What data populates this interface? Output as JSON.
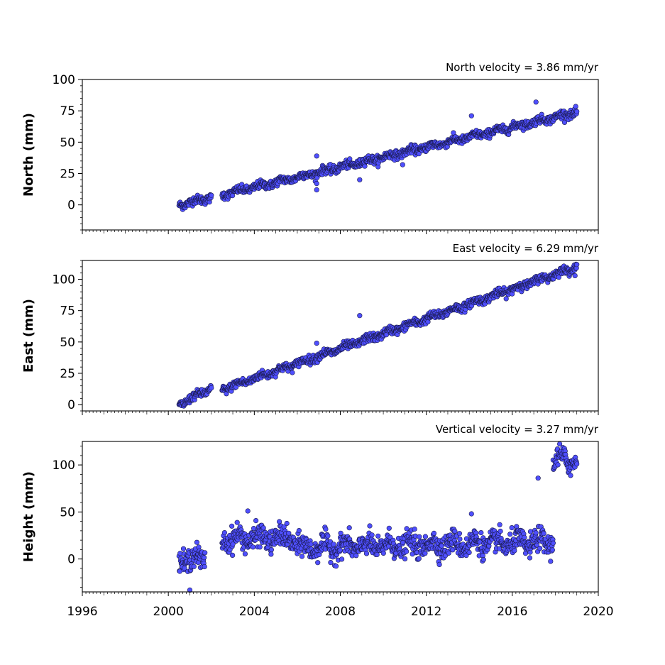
{
  "chart_data": [
    {
      "type": "scatter",
      "title": "North velocity = 3.86 mm/yr",
      "ylabel": "North (mm)",
      "xlim": [
        1996,
        2020
      ],
      "ylim": [
        -20,
        100
      ],
      "yticks": [
        0,
        25,
        50,
        75,
        100
      ],
      "velocity_mm_per_yr": 3.86,
      "marker_color": "#4f4fff",
      "marker_edge": "#1a1a4d",
      "segments": [
        {
          "x": [
            2000.5,
            2002.0
          ],
          "y": [
            0,
            6
          ]
        },
        {
          "x": [
            2002.5,
            2019.0
          ],
          "y": [
            8,
            74
          ]
        }
      ],
      "outliers": [
        {
          "x": 2006.9,
          "y": 12
        },
        {
          "x": 2006.9,
          "y": 17
        },
        {
          "x": 2006.9,
          "y": 39
        },
        {
          "x": 2008.9,
          "y": 20
        },
        {
          "x": 2010.9,
          "y": 32
        },
        {
          "x": 2014.1,
          "y": 71
        },
        {
          "x": 2017.1,
          "y": 82
        }
      ]
    },
    {
      "type": "scatter",
      "title": "East velocity = 6.29 mm/yr",
      "ylabel": "East (mm)",
      "xlim": [
        1996,
        2020
      ],
      "ylim": [
        -5,
        115
      ],
      "yticks": [
        0,
        25,
        50,
        75,
        100
      ],
      "velocity_mm_per_yr": 6.29,
      "marker_color": "#4f4fff",
      "marker_edge": "#1a1a4d",
      "segments": [
        {
          "x": [
            2000.5,
            2002.0
          ],
          "y": [
            0,
            13
          ]
        },
        {
          "x": [
            2002.5,
            2019.0
          ],
          "y": [
            12,
            110
          ]
        }
      ],
      "outliers": [
        {
          "x": 2008.9,
          "y": 71
        },
        {
          "x": 2006.9,
          "y": 49
        }
      ]
    },
    {
      "type": "scatter",
      "title": "Vertical velocity = 3.27 mm/yr",
      "ylabel": "Height (mm)",
      "xlim": [
        1996,
        2020
      ],
      "ylim": [
        -35,
        125
      ],
      "yticks": [
        0,
        50,
        100
      ],
      "xticks": [
        1996,
        2000,
        2004,
        2008,
        2012,
        2016,
        2020
      ],
      "velocity_mm_per_yr": 3.27,
      "marker_color": "#4f4fff",
      "marker_edge": "#1a1a4d",
      "segments": [
        {
          "x": [
            2000.5,
            2001.7
          ],
          "y": [
            0,
            0
          ]
        },
        {
          "x": [
            2002.5,
            2005.9
          ],
          "y": [
            22,
            22
          ]
        },
        {
          "x": [
            2005.9,
            2017.9
          ],
          "y": [
            12,
            18
          ]
        },
        {
          "x": [
            2017.9,
            2019.0
          ],
          "y": [
            105,
            105
          ]
        }
      ],
      "outliers": [
        {
          "x": 2001.0,
          "y": -33
        },
        {
          "x": 2003.7,
          "y": 51
        },
        {
          "x": 2014.1,
          "y": 48
        },
        {
          "x": 2017.2,
          "y": 86
        }
      ]
    }
  ]
}
